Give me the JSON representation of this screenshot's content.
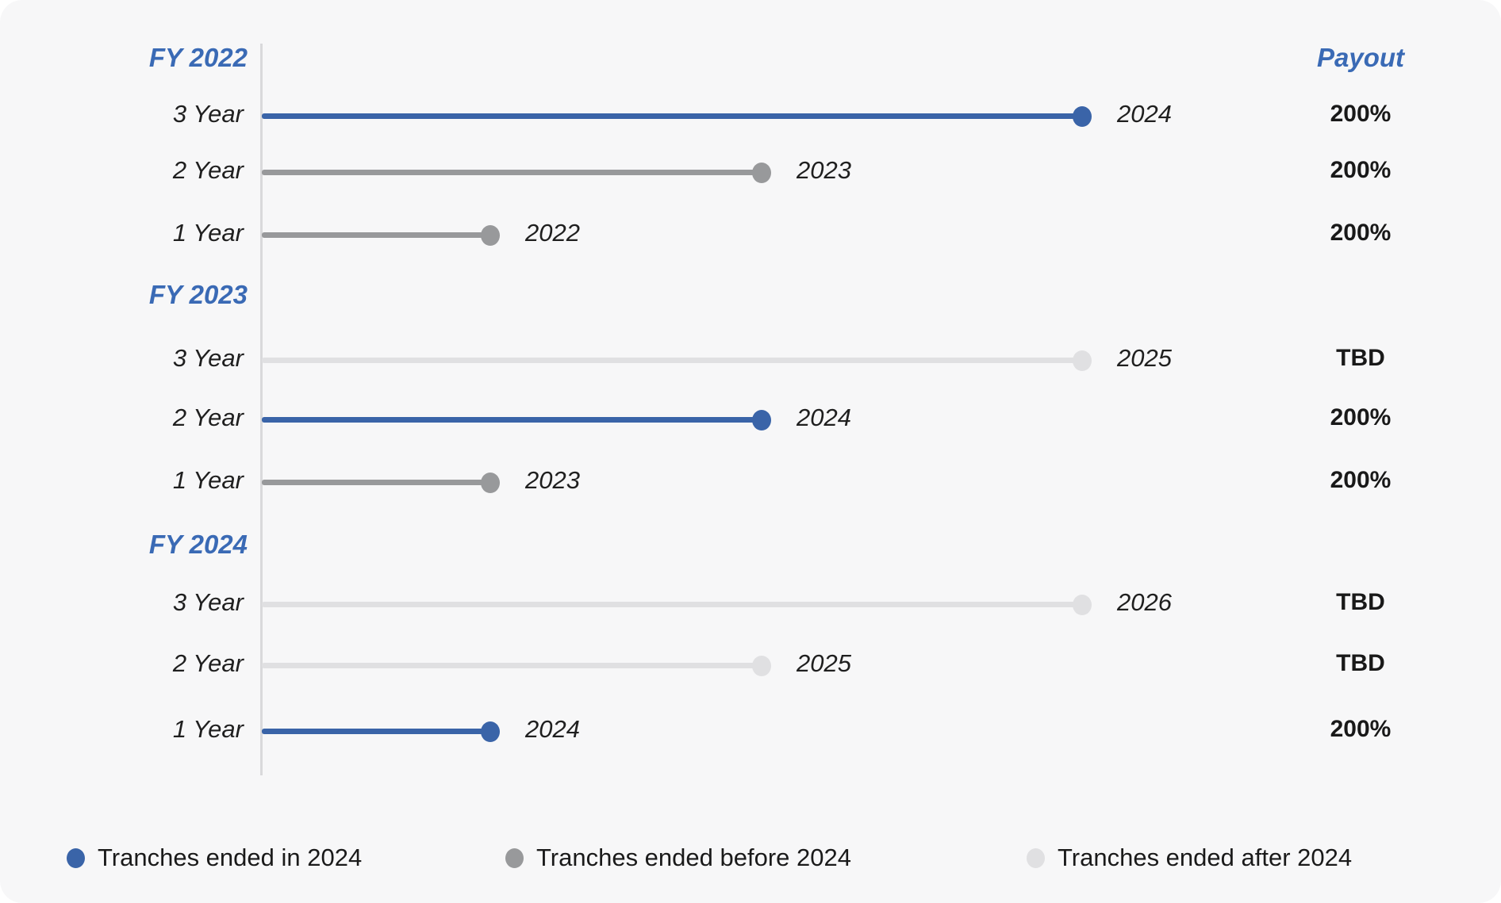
{
  "chart_data": {
    "type": "lollipop-timeline",
    "payout_header": "Payout",
    "colors": {
      "ended_in_2024": "#3a64a8",
      "ended_before_2024": "#98999b",
      "ended_after_2024": "#e0e0e2",
      "axis": "#d9d9db",
      "group_title": "#3a6ab5"
    },
    "legend": [
      {
        "label": "Tranches ended in 2024",
        "status": "ended_in_2024"
      },
      {
        "label": "Tranches ended before 2024",
        "status": "ended_before_2024"
      },
      {
        "label": "Tranches ended after 2024",
        "status": "ended_after_2024"
      }
    ],
    "groups": [
      {
        "label": "FY 2022",
        "tranches": [
          {
            "label": "3 Year",
            "duration_years": 3,
            "end_year": "2024",
            "status": "ended_in_2024",
            "payout": "200%"
          },
          {
            "label": "2 Year",
            "duration_years": 2,
            "end_year": "2023",
            "status": "ended_before_2024",
            "payout": "200%"
          },
          {
            "label": "1 Year",
            "duration_years": 1,
            "end_year": "2022",
            "status": "ended_before_2024",
            "payout": "200%"
          }
        ]
      },
      {
        "label": "FY 2023",
        "tranches": [
          {
            "label": "3 Year",
            "duration_years": 3,
            "end_year": "2025",
            "status": "ended_after_2024",
            "payout": "TBD"
          },
          {
            "label": "2 Year",
            "duration_years": 2,
            "end_year": "2024",
            "status": "ended_in_2024",
            "payout": "200%"
          },
          {
            "label": "1 Year",
            "duration_years": 1,
            "end_year": "2023",
            "status": "ended_before_2024",
            "payout": "200%"
          }
        ]
      },
      {
        "label": "FY 2024",
        "tranches": [
          {
            "label": "3 Year",
            "duration_years": 3,
            "end_year": "2026",
            "status": "ended_after_2024",
            "payout": "TBD"
          },
          {
            "label": "2 Year",
            "duration_years": 2,
            "end_year": "2025",
            "status": "ended_after_2024",
            "payout": "TBD"
          },
          {
            "label": "1 Year",
            "duration_years": 1,
            "end_year": "2024",
            "status": "ended_in_2024",
            "payout": "200%"
          }
        ]
      }
    ]
  }
}
